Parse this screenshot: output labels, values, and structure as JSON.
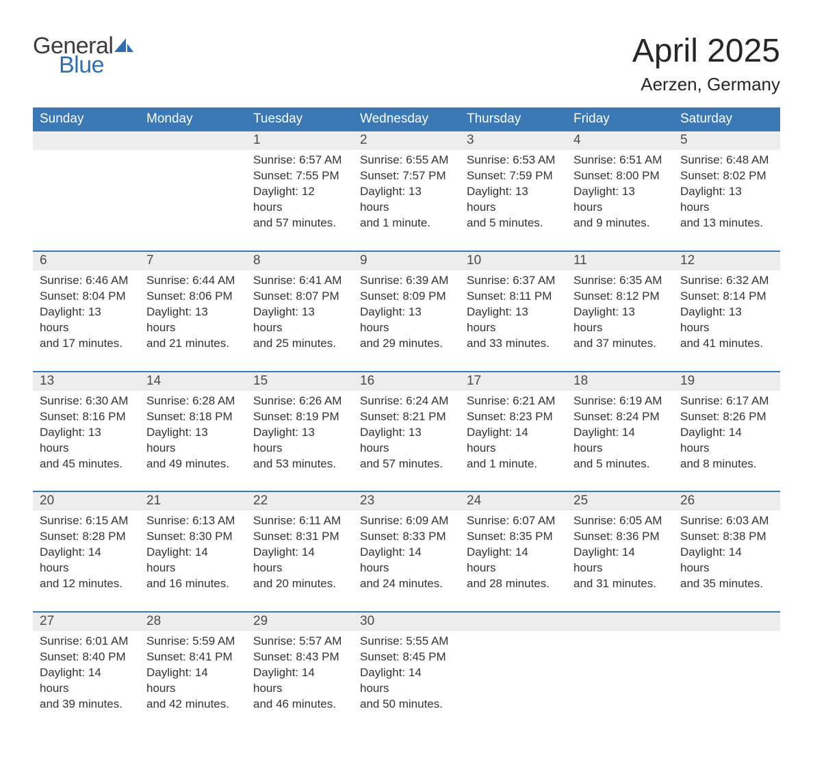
{
  "logo": {
    "text_general": "General",
    "text_blue": "Blue",
    "general_color": "#3c3c3c",
    "blue_color": "#2f6eb0",
    "sail_color": "#2f6eb0"
  },
  "title": "April 2025",
  "location": "Aerzen, Germany",
  "colors": {
    "header_bg": "#3a78b6",
    "header_text": "#ffffff",
    "daynum_bg": "#ededed",
    "daynum_text": "#4a4a4a",
    "body_text": "#333333",
    "separator": "#3a78b6",
    "page_bg": "#ffffff"
  },
  "typography": {
    "title_fontsize": 48,
    "location_fontsize": 26,
    "header_fontsize": 19,
    "daynum_fontsize": 19,
    "cell_fontsize": 17,
    "font_family": "Arial"
  },
  "weekdays": [
    "Sunday",
    "Monday",
    "Tuesday",
    "Wednesday",
    "Thursday",
    "Friday",
    "Saturday"
  ],
  "weeks": [
    {
      "days": [
        null,
        null,
        {
          "n": "1",
          "sunrise": "Sunrise: 6:57 AM",
          "sunset": "Sunset: 7:55 PM",
          "daylight1": "Daylight: 12 hours",
          "daylight2": "and 57 minutes."
        },
        {
          "n": "2",
          "sunrise": "Sunrise: 6:55 AM",
          "sunset": "Sunset: 7:57 PM",
          "daylight1": "Daylight: 13 hours",
          "daylight2": "and 1 minute."
        },
        {
          "n": "3",
          "sunrise": "Sunrise: 6:53 AM",
          "sunset": "Sunset: 7:59 PM",
          "daylight1": "Daylight: 13 hours",
          "daylight2": "and 5 minutes."
        },
        {
          "n": "4",
          "sunrise": "Sunrise: 6:51 AM",
          "sunset": "Sunset: 8:00 PM",
          "daylight1": "Daylight: 13 hours",
          "daylight2": "and 9 minutes."
        },
        {
          "n": "5",
          "sunrise": "Sunrise: 6:48 AM",
          "sunset": "Sunset: 8:02 PM",
          "daylight1": "Daylight: 13 hours",
          "daylight2": "and 13 minutes."
        }
      ]
    },
    {
      "days": [
        {
          "n": "6",
          "sunrise": "Sunrise: 6:46 AM",
          "sunset": "Sunset: 8:04 PM",
          "daylight1": "Daylight: 13 hours",
          "daylight2": "and 17 minutes."
        },
        {
          "n": "7",
          "sunrise": "Sunrise: 6:44 AM",
          "sunset": "Sunset: 8:06 PM",
          "daylight1": "Daylight: 13 hours",
          "daylight2": "and 21 minutes."
        },
        {
          "n": "8",
          "sunrise": "Sunrise: 6:41 AM",
          "sunset": "Sunset: 8:07 PM",
          "daylight1": "Daylight: 13 hours",
          "daylight2": "and 25 minutes."
        },
        {
          "n": "9",
          "sunrise": "Sunrise: 6:39 AM",
          "sunset": "Sunset: 8:09 PM",
          "daylight1": "Daylight: 13 hours",
          "daylight2": "and 29 minutes."
        },
        {
          "n": "10",
          "sunrise": "Sunrise: 6:37 AM",
          "sunset": "Sunset: 8:11 PM",
          "daylight1": "Daylight: 13 hours",
          "daylight2": "and 33 minutes."
        },
        {
          "n": "11",
          "sunrise": "Sunrise: 6:35 AM",
          "sunset": "Sunset: 8:12 PM",
          "daylight1": "Daylight: 13 hours",
          "daylight2": "and 37 minutes."
        },
        {
          "n": "12",
          "sunrise": "Sunrise: 6:32 AM",
          "sunset": "Sunset: 8:14 PM",
          "daylight1": "Daylight: 13 hours",
          "daylight2": "and 41 minutes."
        }
      ]
    },
    {
      "days": [
        {
          "n": "13",
          "sunrise": "Sunrise: 6:30 AM",
          "sunset": "Sunset: 8:16 PM",
          "daylight1": "Daylight: 13 hours",
          "daylight2": "and 45 minutes."
        },
        {
          "n": "14",
          "sunrise": "Sunrise: 6:28 AM",
          "sunset": "Sunset: 8:18 PM",
          "daylight1": "Daylight: 13 hours",
          "daylight2": "and 49 minutes."
        },
        {
          "n": "15",
          "sunrise": "Sunrise: 6:26 AM",
          "sunset": "Sunset: 8:19 PM",
          "daylight1": "Daylight: 13 hours",
          "daylight2": "and 53 minutes."
        },
        {
          "n": "16",
          "sunrise": "Sunrise: 6:24 AM",
          "sunset": "Sunset: 8:21 PM",
          "daylight1": "Daylight: 13 hours",
          "daylight2": "and 57 minutes."
        },
        {
          "n": "17",
          "sunrise": "Sunrise: 6:21 AM",
          "sunset": "Sunset: 8:23 PM",
          "daylight1": "Daylight: 14 hours",
          "daylight2": "and 1 minute."
        },
        {
          "n": "18",
          "sunrise": "Sunrise: 6:19 AM",
          "sunset": "Sunset: 8:24 PM",
          "daylight1": "Daylight: 14 hours",
          "daylight2": "and 5 minutes."
        },
        {
          "n": "19",
          "sunrise": "Sunrise: 6:17 AM",
          "sunset": "Sunset: 8:26 PM",
          "daylight1": "Daylight: 14 hours",
          "daylight2": "and 8 minutes."
        }
      ]
    },
    {
      "days": [
        {
          "n": "20",
          "sunrise": "Sunrise: 6:15 AM",
          "sunset": "Sunset: 8:28 PM",
          "daylight1": "Daylight: 14 hours",
          "daylight2": "and 12 minutes."
        },
        {
          "n": "21",
          "sunrise": "Sunrise: 6:13 AM",
          "sunset": "Sunset: 8:30 PM",
          "daylight1": "Daylight: 14 hours",
          "daylight2": "and 16 minutes."
        },
        {
          "n": "22",
          "sunrise": "Sunrise: 6:11 AM",
          "sunset": "Sunset: 8:31 PM",
          "daylight1": "Daylight: 14 hours",
          "daylight2": "and 20 minutes."
        },
        {
          "n": "23",
          "sunrise": "Sunrise: 6:09 AM",
          "sunset": "Sunset: 8:33 PM",
          "daylight1": "Daylight: 14 hours",
          "daylight2": "and 24 minutes."
        },
        {
          "n": "24",
          "sunrise": "Sunrise: 6:07 AM",
          "sunset": "Sunset: 8:35 PM",
          "daylight1": "Daylight: 14 hours",
          "daylight2": "and 28 minutes."
        },
        {
          "n": "25",
          "sunrise": "Sunrise: 6:05 AM",
          "sunset": "Sunset: 8:36 PM",
          "daylight1": "Daylight: 14 hours",
          "daylight2": "and 31 minutes."
        },
        {
          "n": "26",
          "sunrise": "Sunrise: 6:03 AM",
          "sunset": "Sunset: 8:38 PM",
          "daylight1": "Daylight: 14 hours",
          "daylight2": "and 35 minutes."
        }
      ]
    },
    {
      "days": [
        {
          "n": "27",
          "sunrise": "Sunrise: 6:01 AM",
          "sunset": "Sunset: 8:40 PM",
          "daylight1": "Daylight: 14 hours",
          "daylight2": "and 39 minutes."
        },
        {
          "n": "28",
          "sunrise": "Sunrise: 5:59 AM",
          "sunset": "Sunset: 8:41 PM",
          "daylight1": "Daylight: 14 hours",
          "daylight2": "and 42 minutes."
        },
        {
          "n": "29",
          "sunrise": "Sunrise: 5:57 AM",
          "sunset": "Sunset: 8:43 PM",
          "daylight1": "Daylight: 14 hours",
          "daylight2": "and 46 minutes."
        },
        {
          "n": "30",
          "sunrise": "Sunrise: 5:55 AM",
          "sunset": "Sunset: 8:45 PM",
          "daylight1": "Daylight: 14 hours",
          "daylight2": "and 50 minutes."
        },
        null,
        null,
        null
      ]
    }
  ]
}
